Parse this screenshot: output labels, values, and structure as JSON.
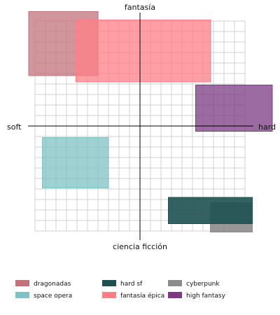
{
  "chart_data": {
    "type": "quadrant",
    "axes": {
      "left": "soft",
      "right": "hard",
      "top": "fantasía",
      "bottom": "ciencia ficción"
    },
    "xlim": [
      -10,
      10
    ],
    "ylim": [
      -10,
      10
    ],
    "grid": true,
    "legend_placement": "bottom",
    "regions": [
      {
        "name": "dragonadas",
        "color": "#c0737a",
        "opacity": 0.75,
        "x": [
          -10.6,
          -4.0
        ],
        "y": [
          4.8,
          10.9
        ]
      },
      {
        "name": "fantasía épica",
        "color": "#ff7f87",
        "opacity": 0.75,
        "x": [
          -6.1,
          6.7
        ],
        "y": [
          4.2,
          10.1
        ]
      },
      {
        "name": "high fantasy",
        "color": "#7b3a81",
        "opacity": 0.75,
        "x": [
          5.3,
          12.6
        ],
        "y": [
          -0.5,
          3.9
        ]
      },
      {
        "name": "space opera",
        "color": "#7fc1c4",
        "opacity": 0.75,
        "x": [
          -9.3,
          -3.0
        ],
        "y": [
          -5.9,
          -1.1
        ]
      },
      {
        "name": "cyberpunk",
        "color": "#8c8c8c",
        "opacity": 0.9,
        "x": [
          6.7,
          10.7
        ],
        "y": [
          -10.1,
          -7.3
        ]
      },
      {
        "name": "hard sf",
        "color": "#1e5050",
        "opacity": 0.9,
        "x": [
          2.7,
          10.7
        ],
        "y": [
          -9.3,
          -6.8
        ]
      }
    ],
    "legend": [
      {
        "name": "dragonadas",
        "color": "#c0737a"
      },
      {
        "name": "space opera",
        "color": "#7fc1c4"
      },
      {
        "name": "hard sf",
        "color": "#1e5050"
      },
      {
        "name": "fantasía épica",
        "color": "#ff7f87"
      },
      {
        "name": "cyberpunk",
        "color": "#8c8c8c"
      },
      {
        "name": "high fantasy",
        "color": "#7b3a81"
      }
    ]
  }
}
